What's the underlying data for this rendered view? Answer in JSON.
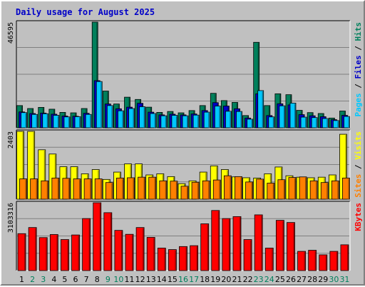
{
  "chart_data": {
    "type": "bar",
    "title": "Daily usage for August 2025",
    "categories": [
      "1",
      "2",
      "3",
      "4",
      "5",
      "6",
      "7",
      "8",
      "9",
      "10",
      "11",
      "12",
      "13",
      "14",
      "15",
      "16",
      "17",
      "18",
      "19",
      "20",
      "21",
      "22",
      "23",
      "24",
      "25",
      "26",
      "27",
      "28",
      "29",
      "30",
      "31"
    ],
    "weekend_days": [
      "2",
      "3",
      "9",
      "10",
      "16",
      "17",
      "23",
      "24",
      "30",
      "31"
    ],
    "panels": [
      {
        "id": "top",
        "max_label": "46595",
        "ylim": [
          0,
          46595
        ],
        "legend": [
          {
            "text": "Pages",
            "color": "#00c8ff"
          },
          {
            "text": " / ",
            "color": "#000000"
          },
          {
            "text": "Files",
            "color": "#0000c8"
          },
          {
            "text": " / ",
            "color": "#000000"
          },
          {
            "text": "Hits",
            "color": "#00805c"
          }
        ],
        "series": [
          {
            "name": "Hits",
            "color": "#00805c",
            "values": [
              9800,
              8500,
              9000,
              8200,
              6800,
              6600,
              8500,
              46595,
              16200,
              10500,
              13500,
              12500,
              9100,
              6800,
              7200,
              6600,
              7600,
              9800,
              15200,
              12000,
              11200,
              5400,
              37700,
              9800,
              15000,
              14600,
              7700,
              6700,
              6300,
              4300,
              7400
            ]
          },
          {
            "name": "Files",
            "color": "#0000c8",
            "values": [
              7000,
              6300,
              6500,
              6000,
              5200,
              5100,
              6400,
              20800,
              10500,
              8400,
              9100,
              10800,
              6900,
              5700,
              6000,
              5700,
              6100,
              7600,
              11100,
              9600,
              8400,
              4300,
              15000,
              5400,
              10600,
              10100,
              5800,
              5300,
              4900,
              3600,
              5500
            ]
          },
          {
            "name": "Pages",
            "color": "#00c8ff",
            "values": [
              6700,
              5900,
              6200,
              5500,
              4800,
              4900,
              5900,
              20400,
              9800,
              7500,
              8500,
              9300,
              6300,
              5300,
              5500,
              5300,
              5600,
              6900,
              9600,
              7300,
              7200,
              3800,
              16400,
              4800,
              9700,
              10900,
              4700,
              4500,
              4100,
              3200,
              5000
            ]
          }
        ]
      },
      {
        "id": "middle",
        "max_label": "2403",
        "ylim": [
          0,
          2403
        ],
        "legend": [
          {
            "text": "Sites",
            "color": "#ff8000"
          },
          {
            "text": " / ",
            "color": "#000000"
          },
          {
            "text": "Visits",
            "color": "#ffff00"
          }
        ],
        "series": [
          {
            "name": "Visits",
            "color": "#ffff00",
            "values": [
              2403,
              2403,
              1750,
              1600,
              1150,
              1150,
              900,
              1050,
              700,
              960,
              1250,
              1250,
              860,
              900,
              800,
              550,
              650,
              960,
              1180,
              1050,
              790,
              760,
              750,
              900,
              1140,
              830,
              780,
              760,
              780,
              860,
              2300
            ]
          },
          {
            "name": "Sites",
            "color": "#ff8000",
            "values": [
              720,
              720,
              650,
              750,
              740,
              720,
              720,
              720,
              590,
              750,
              760,
              780,
              780,
              650,
              640,
              460,
              600,
              650,
              680,
              830,
              800,
              610,
              710,
              570,
              690,
              770,
              790,
              650,
              590,
              650,
              750
            ]
          }
        ]
      },
      {
        "id": "bottom",
        "max_label": "3103316",
        "ylim": [
          0,
          3103316
        ],
        "legend": [
          {
            "text": "KBytes",
            "color": "#ff0000"
          }
        ],
        "series": [
          {
            "name": "KBytes",
            "color": "#ff0000",
            "values": [
              1690000,
              1970000,
              1510000,
              1650000,
              1420000,
              1630000,
              2380000,
              3103316,
              2650000,
              1840000,
              1660000,
              1970000,
              1520000,
              1030000,
              960000,
              1100000,
              1140000,
              2140000,
              2750000,
              2380000,
              2470000,
              1420000,
              2550000,
              1030000,
              2300000,
              2200000,
              880000,
              930000,
              720000,
              880000,
              1180000
            ]
          }
        ]
      }
    ]
  }
}
